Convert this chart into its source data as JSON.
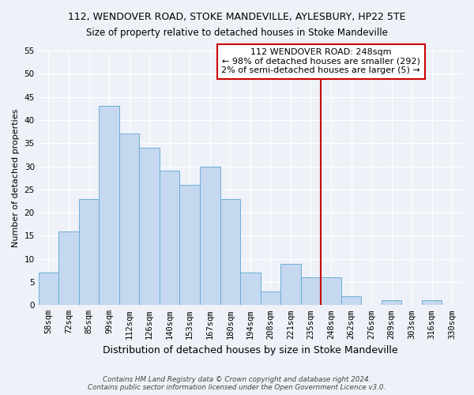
{
  "title": "112, WENDOVER ROAD, STOKE MANDEVILLE, AYLESBURY, HP22 5TE",
  "subtitle": "Size of property relative to detached houses in Stoke Mandeville",
  "xlabel": "Distribution of detached houses by size in Stoke Mandeville",
  "ylabel": "Number of detached properties",
  "bar_labels": [
    "58sqm",
    "72sqm",
    "85sqm",
    "99sqm",
    "112sqm",
    "126sqm",
    "140sqm",
    "153sqm",
    "167sqm",
    "180sqm",
    "194sqm",
    "208sqm",
    "221sqm",
    "235sqm",
    "248sqm",
    "262sqm",
    "276sqm",
    "289sqm",
    "303sqm",
    "316sqm",
    "330sqm"
  ],
  "bar_values": [
    7,
    16,
    23,
    43,
    37,
    34,
    29,
    26,
    30,
    23,
    7,
    3,
    9,
    6,
    6,
    2,
    0,
    1,
    0,
    1,
    0
  ],
  "bar_color": "#c5d8f0",
  "bar_edge_color": "#6baed6",
  "vline_color": "#cc0000",
  "annotation_title": "112 WENDOVER ROAD: 248sqm",
  "annotation_line1": "← 98% of detached houses are smaller (292)",
  "annotation_line2": "2% of semi-detached houses are larger (5) →",
  "annotation_box_color": "#ffffff",
  "annotation_border_color": "#cc0000",
  "ylim": [
    0,
    55
  ],
  "yticks": [
    0,
    5,
    10,
    15,
    20,
    25,
    30,
    35,
    40,
    45,
    50,
    55
  ],
  "footer_line1": "Contains HM Land Registry data © Crown copyright and database right 2024.",
  "footer_line2": "Contains public sector information licensed under the Open Government Licence v3.0.",
  "bg_color": "#eef2f8",
  "grid_color": "#ffffff",
  "title_fontsize": 9,
  "subtitle_fontsize": 8.5,
  "xlabel_fontsize": 9,
  "ylabel_fontsize": 8,
  "tick_fontsize": 7.5,
  "annotation_fontsize": 8
}
